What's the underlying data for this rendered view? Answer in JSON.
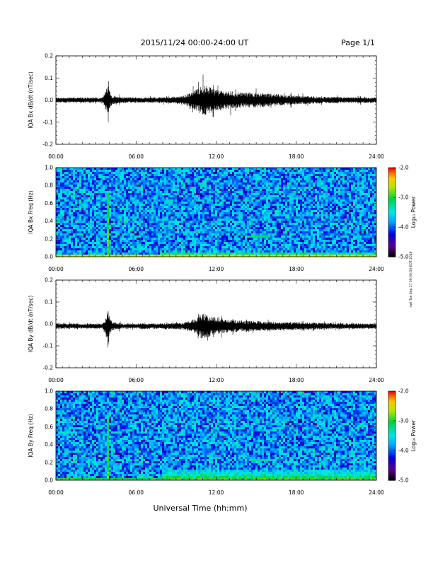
{
  "header": {
    "title": "2015/11/24  00:00-24:00 UT",
    "page": "Page 1/1"
  },
  "footer": {
    "xlabel": "Universal Time (hh:mm)",
    "stamp": "nwl Tue Sep 17 09:00:53 EDT 2019"
  },
  "chart_data": [
    {
      "type": "line",
      "ylabel": "IQA Bx dB/dt (nT/sec)",
      "ylim": [
        -0.2,
        0.2
      ],
      "yticks": [
        "0.2",
        "0.1",
        "0.0",
        "-0.1",
        "-0.2"
      ],
      "xticks": [
        "00:00",
        "06:00",
        "12:00",
        "18:00",
        "24:00"
      ],
      "xlim_hours": [
        0,
        24
      ],
      "baseline": 0.0,
      "envelope": {
        "hours": [
          0,
          3.5,
          3.85,
          3.9,
          4.0,
          4.2,
          5,
          8,
          9.5,
          10.5,
          11.0,
          11.5,
          12.0,
          13,
          14,
          15,
          16,
          17,
          18,
          20,
          22,
          24
        ],
        "amplitude": [
          0.012,
          0.012,
          0.06,
          0.12,
          0.05,
          0.02,
          0.013,
          0.013,
          0.018,
          0.05,
          0.07,
          0.06,
          0.05,
          0.04,
          0.035,
          0.035,
          0.03,
          0.025,
          0.02,
          0.015,
          0.013,
          0.012
        ]
      }
    },
    {
      "type": "heatmap",
      "ylabel": "IQA Bx Freq (Hz)",
      "ylim": [
        0.0,
        1.0
      ],
      "yticks": [
        "1.0",
        "0.8",
        "0.6",
        "0.4",
        "0.2",
        "0.0"
      ],
      "xticks": [
        "00:00",
        "06:00",
        "12:00",
        "18:00",
        "24:00"
      ],
      "xlim_hours": [
        0,
        24
      ],
      "colorbar": {
        "label": "Log₁₀ Power",
        "range": [
          -5.0,
          -2.0
        ],
        "ticks": [
          "-2.0",
          "-3.0",
          "-4.0",
          "-5.0"
        ]
      },
      "background_level": -3.8,
      "features": [
        {
          "type": "spike",
          "hour": 3.9,
          "level": -2.8
        },
        {
          "type": "low-freq-band",
          "freq_max": 0.04,
          "level": -2.6
        },
        {
          "type": "patch",
          "hours": [
            14.5,
            16.0
          ],
          "freq": 0.22,
          "level": -3.2
        }
      ]
    },
    {
      "type": "line",
      "ylabel": "IQA By dB/dt (nT/sec)",
      "ylim": [
        -0.2,
        0.2
      ],
      "yticks": [
        "0.2",
        "0.1",
        "0.0",
        "-0.1",
        "-0.2"
      ],
      "xticks": [
        "00:00",
        "06:00",
        "12:00",
        "18:00",
        "24:00"
      ],
      "xlim_hours": [
        0,
        24
      ],
      "baseline": -0.01,
      "envelope": {
        "hours": [
          0,
          3.5,
          3.85,
          3.9,
          4.0,
          4.2,
          5,
          8,
          9.5,
          10.5,
          10.9,
          11.5,
          12.0,
          13,
          14,
          15,
          16,
          18,
          20,
          22,
          24
        ],
        "amplitude": [
          0.012,
          0.012,
          0.06,
          0.11,
          0.05,
          0.02,
          0.012,
          0.013,
          0.016,
          0.035,
          0.06,
          0.05,
          0.04,
          0.03,
          0.025,
          0.025,
          0.02,
          0.018,
          0.015,
          0.013,
          0.012
        ]
      }
    },
    {
      "type": "heatmap",
      "ylabel": "IQA By Freq (Hz)",
      "ylim": [
        0.0,
        1.0
      ],
      "yticks": [
        "1.0",
        "0.8",
        "0.6",
        "0.4",
        "0.2",
        "0.0"
      ],
      "xticks": [
        "00:00",
        "06:00",
        "12:00",
        "18:00",
        "24:00"
      ],
      "xlim_hours": [
        0,
        24
      ],
      "colorbar": {
        "label": "Log₁₀ Power",
        "range": [
          -5.0,
          -2.0
        ],
        "ticks": [
          "-2.0",
          "-3.0",
          "-4.0",
          "-5.0"
        ]
      },
      "background_level": -3.8,
      "features": [
        {
          "type": "spike",
          "hour": 3.9,
          "level": -2.9
        },
        {
          "type": "low-freq-band",
          "freq_max": 0.12,
          "level": -3.0
        },
        {
          "type": "patch",
          "hours": [
            14.5,
            16.0
          ],
          "freq": 0.22,
          "level": -3.3
        }
      ]
    }
  ]
}
